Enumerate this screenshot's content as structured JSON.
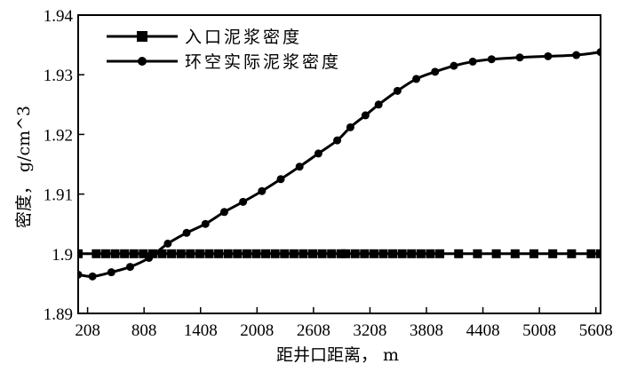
{
  "chart_data": {
    "type": "line",
    "title": "",
    "xlabel": "距井口距离，  m",
    "ylabel": "密度， g/cm^3",
    "xlim": [
      108,
      5658
    ],
    "ylim": [
      1.89,
      1.94
    ],
    "x_ticks": [
      208,
      808,
      1408,
      2008,
      2608,
      3208,
      3808,
      4408,
      5008,
      5608
    ],
    "y_ticks": [
      1.89,
      1.9,
      1.91,
      1.92,
      1.93,
      1.94
    ],
    "y_tick_labels": [
      "1.89",
      "1.9",
      "1.91",
      "1.92",
      "1.93",
      "1.94"
    ],
    "grid": false,
    "legend_position": "top-left",
    "series": [
      {
        "name": "入口泥浆密度",
        "marker": "square",
        "color": "#000000",
        "x": [
          108,
          300,
          400,
          500,
          600,
          700,
          800,
          900,
          1000,
          1100,
          1200,
          1300,
          1400,
          1500,
          1600,
          1700,
          1800,
          1900,
          2000,
          2100,
          2200,
          2300,
          2400,
          2500,
          2600,
          2700,
          2800,
          2900,
          2950,
          3050,
          3150,
          3250,
          3350,
          3450,
          3550,
          3650,
          3750,
          3850,
          3950,
          4150,
          4350,
          4550,
          4750,
          4950,
          5150,
          5350,
          5558,
          5658
        ],
        "y": [
          1.9,
          1.9,
          1.9,
          1.9,
          1.9,
          1.9,
          1.9,
          1.9,
          1.9,
          1.9,
          1.9,
          1.9,
          1.9,
          1.9,
          1.9,
          1.9,
          1.9,
          1.9,
          1.9,
          1.9,
          1.9,
          1.9,
          1.9,
          1.9,
          1.9,
          1.9,
          1.9,
          1.9,
          1.9,
          1.9,
          1.9,
          1.9,
          1.9,
          1.9,
          1.9,
          1.9,
          1.9,
          1.9,
          1.9,
          1.9,
          1.9,
          1.9,
          1.9,
          1.9,
          1.9,
          1.9,
          1.9,
          1.9
        ]
      },
      {
        "name": "环空实际泥浆密度",
        "marker": "circle",
        "color": "#000000",
        "x": [
          108,
          260,
          460,
          660,
          860,
          1060,
          1260,
          1460,
          1660,
          1860,
          2060,
          2260,
          2460,
          2660,
          2860,
          3000,
          3160,
          3300,
          3500,
          3700,
          3900,
          4100,
          4300,
          4500,
          4800,
          5100,
          5400,
          5658
        ],
        "y": [
          1.8965,
          1.8962,
          1.8969,
          1.8978,
          1.8993,
          1.9017,
          1.9035,
          1.905,
          1.907,
          1.9087,
          1.9105,
          1.9125,
          1.9146,
          1.9168,
          1.919,
          1.9212,
          1.9232,
          1.925,
          1.9273,
          1.9293,
          1.9305,
          1.9315,
          1.9322,
          1.9326,
          1.9329,
          1.9331,
          1.9333,
          1.9338
        ]
      }
    ]
  }
}
